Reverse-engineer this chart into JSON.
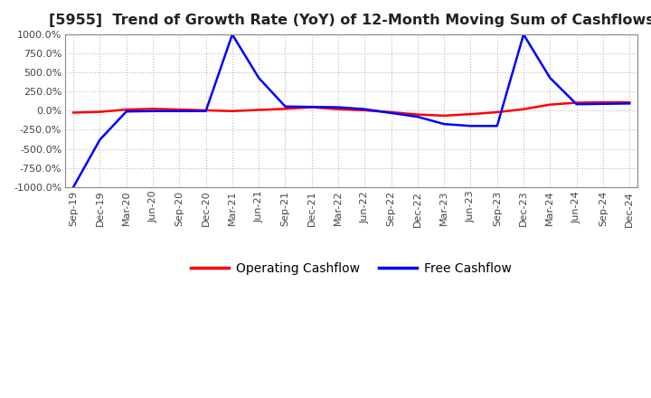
{
  "title": "[5955]  Trend of Growth Rate (YoY) of 12-Month Moving Sum of Cashflows",
  "ylim": [
    -1000,
    1000
  ],
  "yticks": [
    -1000,
    -750,
    -500,
    -250,
    0,
    250,
    500,
    750,
    1000
  ],
  "ytick_labels": [
    "-1000.0%",
    "-750.0%",
    "-500.0%",
    "-250.0%",
    "0.0%",
    "250.0%",
    "500.0%",
    "750.0%",
    "1000.0%"
  ],
  "x_labels": [
    "Sep-19",
    "Dec-19",
    "Mar-20",
    "Jun-20",
    "Sep-20",
    "Dec-20",
    "Mar-21",
    "Jun-21",
    "Sep-21",
    "Dec-21",
    "Mar-22",
    "Jun-22",
    "Sep-22",
    "Dec-22",
    "Mar-23",
    "Jun-23",
    "Sep-23",
    "Dec-23",
    "Mar-24",
    "Jun-24",
    "Sep-24",
    "Dec-24"
  ],
  "operating_cashflow": [
    -25,
    -15,
    15,
    25,
    15,
    5,
    -5,
    10,
    25,
    45,
    20,
    5,
    -20,
    -50,
    -65,
    -45,
    -20,
    20,
    80,
    105,
    110,
    110
  ],
  "free_cashflow": [
    -1000,
    -380,
    -10,
    -5,
    -5,
    -5,
    1000,
    430,
    55,
    50,
    45,
    20,
    -30,
    -80,
    -175,
    -200,
    -200,
    1000,
    430,
    85,
    90,
    95
  ],
  "operating_color": "#ff0000",
  "free_color": "#0000ff",
  "background_color": "#ffffff",
  "grid_color": "#aaaaaa",
  "title_fontsize": 11.5,
  "legend_fontsize": 10,
  "tick_fontsize": 8
}
